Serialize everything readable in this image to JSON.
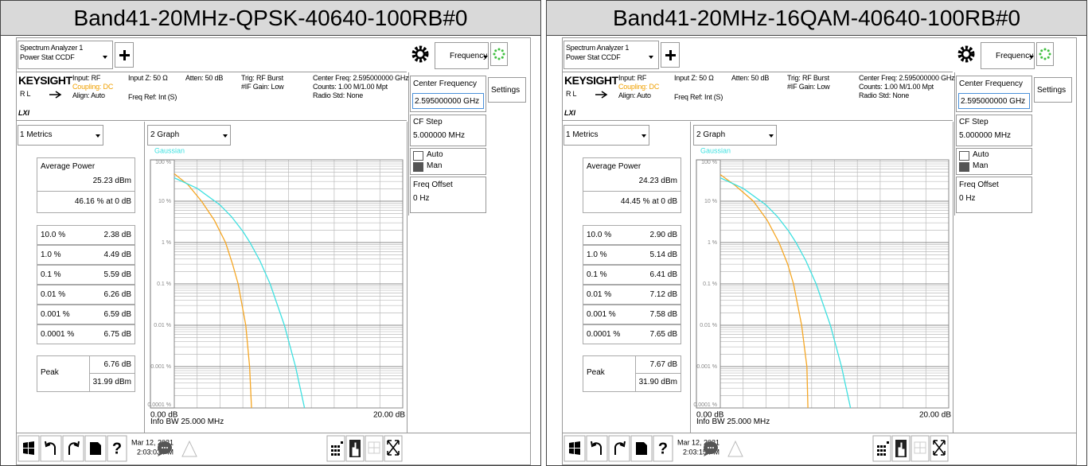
{
  "panels": [
    {
      "title": "Band41-20MHz-QPSK-40640-100RB#0",
      "app_name": "Spectrum Analyzer 1",
      "app_mode": "Power Stat CCDF",
      "mode_menu": "Frequency",
      "brand": "KEYSIGHT",
      "rl": "RL",
      "lxi": "LXI",
      "input": "Input: RF",
      "coupling": "Coupling: DC",
      "align": "Align: Auto",
      "input_z": "Input Z: 50 Ω",
      "freq_ref": "Freq Ref: Int (S)",
      "atten": "Atten: 50 dB",
      "trig": "Trig: RF Burst",
      "if_gain": "#IF Gain: Low",
      "center_freq": "Center Freq: 2.595000000 GHz",
      "counts": "Counts: 1.00 M/1.00 Mpt",
      "radio_std": "Radio Std: None",
      "softkeys": {
        "center_label": "Center Frequency",
        "center_value": "2.595000000 GHz",
        "step_label": "CF Step",
        "step_value": "5.000000 MHz",
        "auto": "Auto",
        "man": "Man",
        "offset_label": "Freq Offset",
        "offset_value": "0 Hz",
        "settings": "Settings"
      },
      "window1": "1 Metrics",
      "window2": "2 Graph",
      "metrics": {
        "avg_label": "Average Power",
        "avg_dbm": "25.23 dBm",
        "avg_pct": "46.16 % at 0 dB",
        "rows": [
          [
            "10.0 %",
            "2.38 dB"
          ],
          [
            "1.0 %",
            "4.49 dB"
          ],
          [
            "0.1 %",
            "5.59 dB"
          ],
          [
            "0.01 %",
            "6.26 dB"
          ],
          [
            "0.001 %",
            "6.59 dB"
          ],
          [
            "0.0001 %",
            "6.75 dB"
          ]
        ],
        "peak_label": "Peak",
        "peak_db": "6.76 dB",
        "peak_dbm": "31.99 dBm"
      },
      "chart_data": {
        "type": "line",
        "log_y": true,
        "grid": true,
        "xlim": [
          0,
          20
        ],
        "xticks": [
          {
            "value": 0,
            "label": "0.00 dB"
          },
          {
            "value": 20,
            "label": "20.00 dB"
          }
        ],
        "ylim": [
          0.0001,
          100
        ],
        "yticks": [
          {
            "value": 100,
            "label": "100 %"
          },
          {
            "value": 10,
            "label": "10 %"
          },
          {
            "value": 1,
            "label": "1 %"
          },
          {
            "value": 0.1,
            "label": "0.1 %"
          },
          {
            "value": 0.01,
            "label": "0.01 %"
          },
          {
            "value": 0.001,
            "label": "0.001 %"
          },
          {
            "value": 0.0001,
            "label": "0.0001 %"
          }
        ],
        "series": [
          {
            "color": "#f5a623",
            "x": [
              0,
              1.2,
              2.38,
              3.5,
              4.49,
              5.1,
              5.59,
              6.26,
              6.59,
              6.76
            ],
            "values": [
              46,
              25,
              10,
              3.5,
              1,
              0.3,
              0.1,
              0.01,
              0.001,
              0.0001
            ]
          },
          {
            "name": "Gaussian",
            "color": "#3ee0e0",
            "x": [
              0,
              2,
              4,
              5,
              6,
              6.63,
              7.5,
              8.39,
              9.64,
              10.61,
              11.4
            ],
            "values": [
              36.8,
              20.5,
              8.11,
              4.23,
              1.87,
              1,
              0.361,
              0.1,
              0.01,
              0.001,
              0.0001
            ]
          }
        ]
      },
      "info_bw": "Info BW 25.000 MHz",
      "help": "?",
      "date": "Mar 12, 2021",
      "time": "2:03:03 PM"
    },
    {
      "title": "Band41-20MHz-16QAM-40640-100RB#0",
      "app_name": "Spectrum Analyzer 1",
      "app_mode": "Power Stat CCDF",
      "mode_menu": "Frequency",
      "brand": "KEYSIGHT",
      "rl": "RL",
      "lxi": "LXI",
      "input": "Input: RF",
      "coupling": "Coupling: DC",
      "align": "Align: Auto",
      "input_z": "Input Z: 50 Ω",
      "freq_ref": "Freq Ref: Int (S)",
      "atten": "Atten: 50 dB",
      "trig": "Trig: RF Burst",
      "if_gain": "#IF Gain: Low",
      "center_freq": "Center Freq: 2.595000000 GHz",
      "counts": "Counts: 1.00 M/1.00 Mpt",
      "radio_std": "Radio Std: None",
      "softkeys": {
        "center_label": "Center Frequency",
        "center_value": "2.595000000 GHz",
        "step_label": "CF Step",
        "step_value": "5.000000 MHz",
        "auto": "Auto",
        "man": "Man",
        "offset_label": "Freq Offset",
        "offset_value": "0 Hz",
        "settings": "Settings"
      },
      "window1": "1 Metrics",
      "window2": "2 Graph",
      "metrics": {
        "avg_label": "Average Power",
        "avg_dbm": "24.23 dBm",
        "avg_pct": "44.45 % at 0 dB",
        "rows": [
          [
            "10.0 %",
            "2.90 dB"
          ],
          [
            "1.0 %",
            "5.14 dB"
          ],
          [
            "0.1 %",
            "6.41 dB"
          ],
          [
            "0.01 %",
            "7.12 dB"
          ],
          [
            "0.001 %",
            "7.58 dB"
          ],
          [
            "0.0001 %",
            "7.65 dB"
          ]
        ],
        "peak_label": "Peak",
        "peak_db": "7.67 dB",
        "peak_dbm": "31.90 dBm"
      },
      "chart_data": {
        "type": "line",
        "log_y": true,
        "grid": true,
        "xlim": [
          0,
          20
        ],
        "xticks": [
          {
            "value": 0,
            "label": "0.00 dB"
          },
          {
            "value": 20,
            "label": "20.00 dB"
          }
        ],
        "ylim": [
          0.0001,
          100
        ],
        "yticks": [
          {
            "value": 100,
            "label": "100 %"
          },
          {
            "value": 10,
            "label": "10 %"
          },
          {
            "value": 1,
            "label": "1 %"
          },
          {
            "value": 0.1,
            "label": "0.1 %"
          },
          {
            "value": 0.01,
            "label": "0.01 %"
          },
          {
            "value": 0.001,
            "label": "0.001 %"
          },
          {
            "value": 0.0001,
            "label": "0.0001 %"
          }
        ],
        "series": [
          {
            "color": "#f5a623",
            "x": [
              0,
              1.3,
              2.9,
              4.1,
              5.14,
              5.9,
              6.41,
              7.12,
              7.58,
              7.67
            ],
            "values": [
              44,
              24,
              10,
              3.5,
              1,
              0.3,
              0.1,
              0.01,
              0.001,
              0.0001
            ]
          },
          {
            "name": "Gaussian",
            "color": "#3ee0e0",
            "x": [
              0,
              2,
              4,
              5,
              6,
              6.63,
              7.5,
              8.39,
              9.64,
              10.61,
              11.4
            ],
            "values": [
              36.8,
              20.5,
              8.11,
              4.23,
              1.87,
              1,
              0.361,
              0.1,
              0.01,
              0.001,
              0.0001
            ]
          }
        ]
      },
      "info_bw": "Info BW 25.000 MHz",
      "help": "?",
      "date": "Mar 12, 2021",
      "time": "2:03:15 PM"
    }
  ]
}
